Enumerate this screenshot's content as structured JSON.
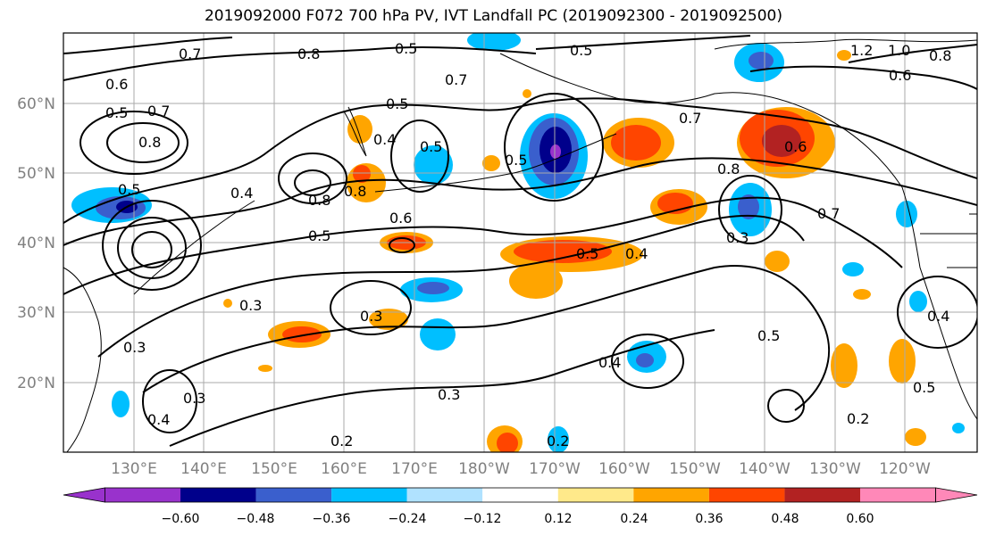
{
  "title": "2019092000 F072 700 hPa PV, IVT Landfall PC (2019092300 - 2019092500)",
  "map": {
    "lat_labels": [
      "20°N",
      "30°N",
      "40°N",
      "50°N",
      "60°N"
    ],
    "lon_labels": [
      "130°E",
      "140°E",
      "150°E",
      "160°E",
      "170°E",
      "180°W",
      "170°W",
      "160°W",
      "150°W",
      "140°W",
      "130°W",
      "120°W"
    ],
    "contour_labels": [
      "0.7",
      "0.8",
      "0.5",
      "0.5",
      "1.2",
      "1.0",
      "0.8",
      "0.6",
      "0.6",
      "0.7",
      "0.7",
      "0.5",
      "0.4",
      "0.5",
      "0.8",
      "0.7",
      "0.8",
      "0.4",
      "0.5",
      "0.5",
      "0.8",
      "0.6",
      "0.6",
      "0.8",
      "0.5",
      "0.7",
      "0.5",
      "0.4",
      "0.5",
      "0.3",
      "0.3",
      "0.3",
      "0.3",
      "0.4",
      "0.4",
      "0.5",
      "0.3",
      "0.3",
      "0.2",
      "0.2",
      "0.5",
      "0.4",
      "0.2"
    ]
  },
  "colorbar": {
    "tick_labels": [
      "−0.60",
      "−0.48",
      "−0.36",
      "−0.24",
      "−0.12",
      "0.12",
      "0.24",
      "0.36",
      "0.48",
      "0.60"
    ],
    "colors": [
      "#9932cc",
      "#00008b",
      "#3a5fcd",
      "#00bfff",
      "#b0e2ff",
      "#ffffff",
      "#ffe98a",
      "#ffa500",
      "#ff4500",
      "#b22222",
      "#ff88b8"
    ]
  }
}
